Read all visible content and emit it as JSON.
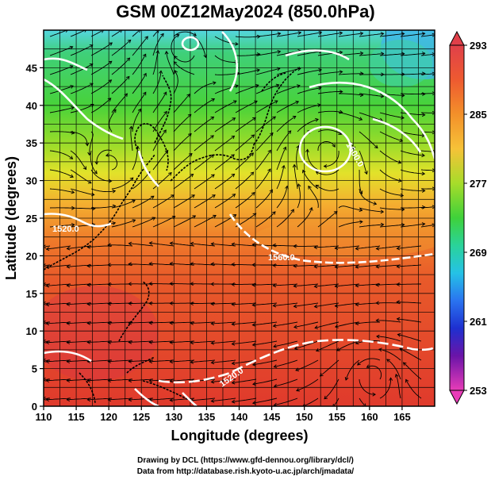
{
  "title": "GSM 00Z12May2024 (850.0hPa)",
  "xaxis": {
    "label": "Longitude (degrees)",
    "ticks": [
      "110",
      "115",
      "120",
      "125",
      "130",
      "135",
      "140",
      "145",
      "150",
      "155",
      "160",
      "165"
    ]
  },
  "yaxis": {
    "label": "Latitude  (degrees)",
    "ticks": [
      "0",
      "5",
      "10",
      "15",
      "20",
      "25",
      "30",
      "35",
      "40",
      "45"
    ]
  },
  "colorbar": {
    "labels": [
      "293",
      "285",
      "277",
      "269",
      "261",
      "253"
    ],
    "colors": [
      "#e0404a",
      "#ef7a2a",
      "#f6c238",
      "#a7dc2a",
      "#3fd13a",
      "#2ad39a",
      "#25c2e6",
      "#2a74f0",
      "#1e30d0",
      "#4a14a8",
      "#c21aa8",
      "#e83cb8"
    ]
  },
  "contour_labels": [
    "1600.0",
    "1560.0",
    "1520.0",
    "1520.0"
  ],
  "credits": [
    "Drawing by DCL (https://www.gfd-dennou.org/library/dcl/)",
    "Data from http://database.rish.kyoto-u.ac.jp/arch/jmadata/"
  ],
  "chart_data": {
    "type": "heatmap",
    "title": "GSM 00Z12May2024 (850.0hPa)",
    "xlabel": "Longitude (degrees)",
    "ylabel": "Latitude  (degrees)",
    "xlim": [
      110,
      170
    ],
    "ylim": [
      0,
      50
    ],
    "colorbar_range": [
      253,
      293
    ],
    "colorbar_ticks": [
      253,
      261,
      269,
      277,
      285,
      293
    ],
    "field": "temperature (shaded), height contours (white), wind streamlines (black)"
  }
}
